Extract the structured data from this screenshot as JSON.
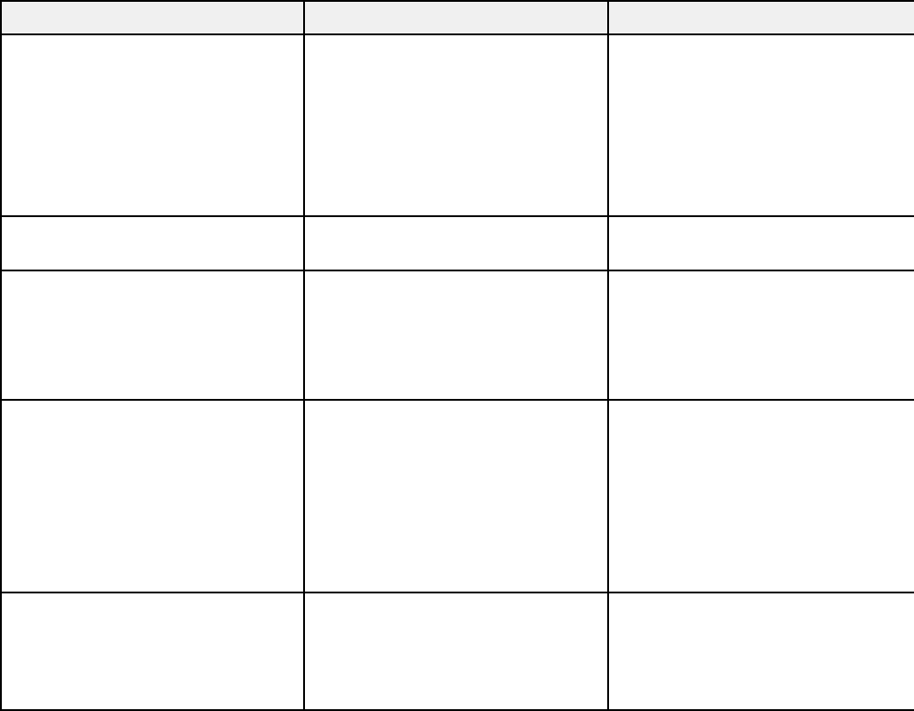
{
  "table": {
    "header_background": "#f0f0f0",
    "border_color": "#000000",
    "headers": [
      "",
      "",
      ""
    ],
    "rows": [
      [
        "",
        "",
        ""
      ],
      [
        "",
        "",
        ""
      ],
      [
        "",
        "",
        ""
      ],
      [
        "",
        "",
        ""
      ],
      [
        "",
        "",
        ""
      ]
    ]
  }
}
